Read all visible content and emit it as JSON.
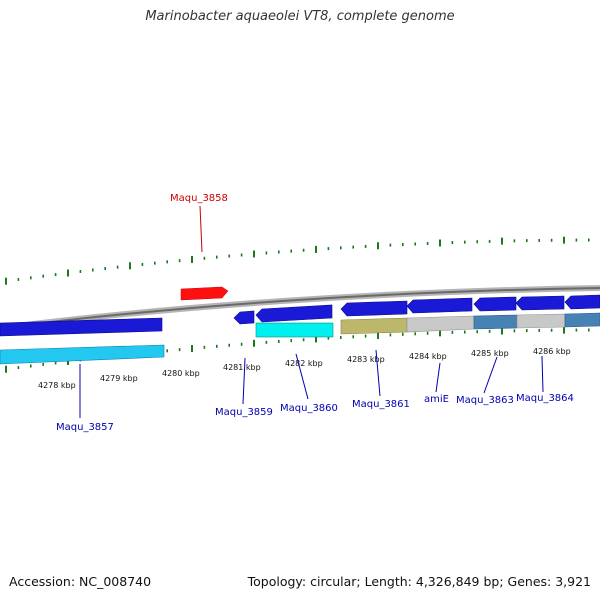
{
  "title": "Marinobacter aquaeolei VT8, complete genome",
  "footer": {
    "accession": "Accession: NC_008740",
    "summary": "Topology: circular; Length: 4,326,849 bp; Genes: 3,921"
  },
  "colors": {
    "backbone": "#8a8a8a",
    "tick": "#1a7a1a",
    "forward_gene": "#1a1ad6",
    "pseudo_gene": "#ff0000",
    "label_blue": "#0000b0",
    "label_red": "#cc0000"
  },
  "ticks": {
    "labels": [
      {
        "text": "4278 kbp"
      },
      {
        "text": "4279 kbp"
      },
      {
        "text": "4280 kbp"
      },
      {
        "text": "4281 kbp"
      },
      {
        "text": "4282 kbp"
      },
      {
        "text": "4283 kbp"
      },
      {
        "text": "4284 kbp"
      },
      {
        "text": "4285 kbp"
      },
      {
        "text": "4286 kbp"
      }
    ]
  },
  "genes": [
    {
      "name": "Maqu_3857"
    },
    {
      "name": "Maqu_3858"
    },
    {
      "name": "Maqu_3859"
    },
    {
      "name": "Maqu_3860"
    },
    {
      "name": "Maqu_3861"
    },
    {
      "name": "amiE"
    },
    {
      "name": "Maqu_3863"
    },
    {
      "name": "Maqu_3864"
    }
  ]
}
